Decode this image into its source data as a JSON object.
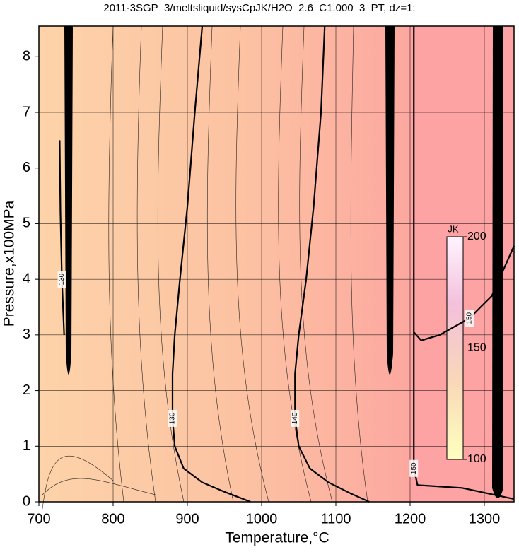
{
  "chart_data": {
    "type": "contour",
    "title": "2011-3SGP_3/meltsliquid/sysCpJK/H2O_2.6_C1.000_3_PT, dz=1:",
    "x_label": "Temperature,°C",
    "y_label": "Pressure,x100MPa",
    "xlim": [
      700,
      1340
    ],
    "ylim": [
      0,
      8.55
    ],
    "xticks": [
      700,
      800,
      900,
      1000,
      1100,
      1200,
      1300
    ],
    "yticks": [
      0,
      1,
      2,
      3,
      4,
      5,
      6,
      7,
      8
    ],
    "grid": true,
    "contours": [
      {
        "level": 130,
        "x": [
          920,
          910,
          900,
          890,
          883,
          880,
          880,
          883,
          895,
          920,
          950,
          985
        ],
        "y": [
          8.55,
          7,
          5.3,
          4,
          3,
          2.3,
          1.5,
          1.0,
          0.6,
          0.35,
          0.18,
          0
        ]
      },
      {
        "level": 140,
        "x": [
          1085,
          1080,
          1070,
          1060,
          1050,
          1045,
          1045,
          1050,
          1065,
          1090,
          1120,
          1145
        ],
        "y": [
          8.55,
          7,
          5.3,
          4,
          3,
          2.3,
          1.5,
          1.0,
          0.6,
          0.35,
          0.15,
          0
        ]
      },
      {
        "level": 150,
        "x": [
          1340,
          1270,
          1210,
          1205,
          1205,
          1205
        ],
        "y": [
          0.05,
          0.25,
          0.3,
          0.6,
          2.2,
          8.55
        ]
      },
      {
        "level": 150,
        "x": [
          1205,
          1215,
          1240,
          1280,
          1310,
          1340
        ],
        "y": [
          3.05,
          2.9,
          3.0,
          3.3,
          3.7,
          4.6
        ]
      },
      {
        "level": 130,
        "x": [
          728,
          729,
          731,
          734
        ],
        "y": [
          6.5,
          5.2,
          4,
          3
        ]
      }
    ],
    "colorbar": {
      "label": "JK",
      "lim": [
        100,
        200
      ],
      "ticks": [
        100,
        150,
        200
      ]
    }
  }
}
